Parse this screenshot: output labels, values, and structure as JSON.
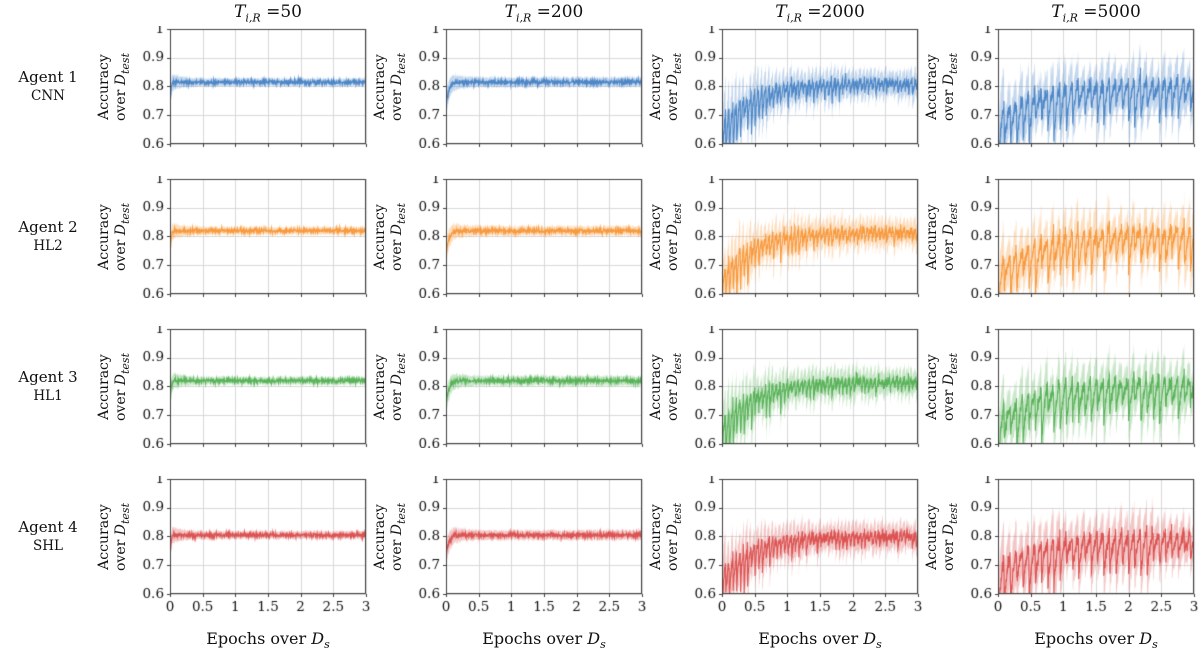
{
  "chart_data": {
    "type": "line",
    "layout": "4x4 small-multiples grid: rows = agents, columns = T_iR values",
    "x": {
      "label_pre": "Epochs over ",
      "label_d": "D",
      "label_sub": "s",
      "range": [
        0,
        3
      ],
      "ticks": [
        0,
        0.5,
        1,
        1.5,
        2,
        2.5,
        3
      ],
      "tick_labels": [
        "0",
        "0.5",
        "1",
        "1.5",
        "2",
        "2.5",
        "3"
      ]
    },
    "y": {
      "label_line1": "Accuracy",
      "label_line2_pre": "over ",
      "label_d": "D",
      "label_sub": "test",
      "range": [
        0.6,
        1
      ],
      "ticks": [
        1,
        0.9,
        0.8,
        0.7,
        0.6
      ],
      "tick_labels": [
        "1",
        "0.9",
        "0.8",
        "0.7",
        "0.6"
      ]
    },
    "rows": [
      {
        "agent": "Agent 1",
        "arch": "CNN",
        "color": "#4d87c7",
        "plateau": 0.815
      },
      {
        "agent": "Agent 2",
        "arch": "HL2",
        "color": "#f89a3e",
        "plateau": 0.82
      },
      {
        "agent": "Agent 3",
        "arch": "HL1",
        "color": "#59b359",
        "plateau": 0.82
      },
      {
        "agent": "Agent 4",
        "arch": "SHL",
        "color": "#dc5352",
        "plateau": 0.805
      }
    ],
    "columns": [
      {
        "T": 50,
        "title_symbol": "T",
        "title_sub": "i,R",
        "title_val": "=50",
        "behavior": "fast smooth convergence to ~0.81-0.82 with narrow shaded variance band",
        "mean_trend": {
          "x": [
            0,
            0.05,
            0.25,
            1,
            2,
            3
          ],
          "y": [
            0.7,
            0.8,
            0.81,
            0.815,
            0.815,
            0.815
          ]
        },
        "sim": {
          "start": 0.7,
          "tau": 0.012,
          "noise": 0.0035,
          "band": 0.013,
          "bandStartMult": 2.5
        }
      },
      {
        "T": 200,
        "title_symbol": "T",
        "title_sub": "i,R",
        "title_val": "=200",
        "behavior": "smooth convergence to ~0.82, slightly slower start, narrow band",
        "mean_trend": {
          "x": [
            0,
            0.05,
            0.25,
            1,
            2,
            3
          ],
          "y": [
            0.73,
            0.78,
            0.81,
            0.82,
            0.82,
            0.825
          ]
        },
        "sim": {
          "start": 0.73,
          "tau": 0.04,
          "noise": 0.004,
          "band": 0.016,
          "bandStartMult": 2.5
        }
      },
      {
        "T": 2000,
        "title_symbol": "T",
        "title_sub": "i,R",
        "title_val": "=2000",
        "behavior": "strong high-frequency sawtooth oscillations, dips to 0.6 early, envelope shrinking while mean rises to ~0.82",
        "mean_trend": {
          "x": [
            0,
            0.25,
            0.5,
            1,
            2,
            3
          ],
          "y": [
            0.66,
            0.74,
            0.77,
            0.8,
            0.815,
            0.82
          ]
        },
        "sim": {
          "start": 0.66,
          "tau": 0.45,
          "noise": 0.008,
          "band": 0.03,
          "bandStartMult": 1.8,
          "osc": {
            "amp0": 0.13,
            "ampMin": 0.025,
            "ampTau": 0.9,
            "period": 0.056,
            "pow": 2.2
          }
        }
      },
      {
        "T": 5000,
        "title_symbol": "T",
        "title_sub": "i,R",
        "title_val": "=5000",
        "behavior": "persistent large sawtooth oscillations over the whole range, repeated drops to ~0.6 and peaks near 0.88, mean ~0.80",
        "mean_trend": {
          "x": [
            0,
            0.25,
            0.5,
            1,
            2,
            3
          ],
          "y": [
            0.68,
            0.73,
            0.76,
            0.78,
            0.8,
            0.8
          ]
        },
        "sim": {
          "start": 0.68,
          "tau": 0.6,
          "plateauDelta": -0.008,
          "noise": 0.011,
          "band": 0.035,
          "bandStartMult": 1.4,
          "osc": {
            "amp0": 0.14,
            "ampMin": 0.09,
            "ampTau": 1.2,
            "period": 0.095,
            "pow": 2.0
          }
        }
      }
    ],
    "style": {
      "grid_color": "#d8d8d8",
      "box_color": "#3f3f3f",
      "text_color": "#111111",
      "band_alpha": 0.33
    },
    "grid_on": true,
    "legend": "none"
  }
}
